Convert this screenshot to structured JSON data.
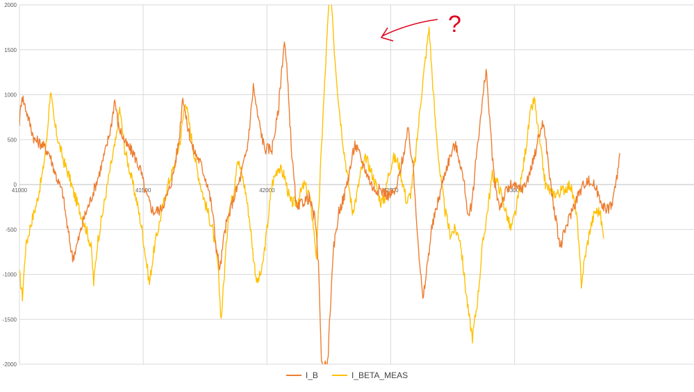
{
  "chart_data": {
    "type": "line",
    "title": "",
    "xlabel": "",
    "ylabel": "",
    "xlim": [
      41000,
      43725
    ],
    "ylim": [
      -2000,
      2000
    ],
    "x_ticks": [
      "41000",
      "41500",
      "42000",
      "42500",
      "43000"
    ],
    "y_ticks": [
      "2000",
      "1500",
      "1000",
      "500",
      "0",
      "-500",
      "-1000",
      "-1500",
      "-2000"
    ],
    "grid": true,
    "legend_position": "bottom",
    "annotation": "?",
    "series": [
      {
        "name": "I_B",
        "color": "#ED7D31",
        "points": [
          [
            41000,
            700
          ],
          [
            41010,
            1000
          ],
          [
            41030,
            800
          ],
          [
            41060,
            500
          ],
          [
            41090,
            450
          ],
          [
            41120,
            350
          ],
          [
            41150,
            80
          ],
          [
            41175,
            -100
          ],
          [
            41195,
            -500
          ],
          [
            41215,
            -820
          ],
          [
            41235,
            -650
          ],
          [
            41260,
            -380
          ],
          [
            41290,
            -150
          ],
          [
            41320,
            100
          ],
          [
            41350,
            400
          ],
          [
            41370,
            650
          ],
          [
            41385,
            950
          ],
          [
            41400,
            650
          ],
          [
            41430,
            450
          ],
          [
            41460,
            350
          ],
          [
            41490,
            150
          ],
          [
            41510,
            -100
          ],
          [
            41540,
            -300
          ],
          [
            41570,
            -280
          ],
          [
            41600,
            -100
          ],
          [
            41620,
            100
          ],
          [
            41645,
            500
          ],
          [
            41660,
            1000
          ],
          [
            41675,
            700
          ],
          [
            41700,
            400
          ],
          [
            41730,
            250
          ],
          [
            41760,
            0
          ],
          [
            41780,
            -300
          ],
          [
            41795,
            -700
          ],
          [
            41810,
            -950
          ],
          [
            41830,
            -500
          ],
          [
            41860,
            -200
          ],
          [
            41890,
            50
          ],
          [
            41920,
            400
          ],
          [
            41935,
            800
          ],
          [
            41945,
            1100
          ],
          [
            41960,
            800
          ],
          [
            41990,
            400
          ],
          [
            42020,
            400
          ],
          [
            42045,
            800
          ],
          [
            42060,
            1300
          ],
          [
            42070,
            1600
          ],
          [
            42080,
            1300
          ],
          [
            42100,
            350
          ],
          [
            42120,
            -300
          ],
          [
            42140,
            -200
          ],
          [
            42170,
            -150
          ],
          [
            42195,
            -400
          ],
          [
            42210,
            -1000
          ],
          [
            42220,
            -2000
          ],
          [
            42245,
            -2000
          ],
          [
            42255,
            -1400
          ],
          [
            42270,
            -700
          ],
          [
            42290,
            -300
          ],
          [
            42310,
            -150
          ],
          [
            42330,
            100
          ],
          [
            42355,
            450
          ],
          [
            42375,
            320
          ],
          [
            42400,
            150
          ],
          [
            42430,
            -50
          ],
          [
            42460,
            -60
          ],
          [
            42490,
            -120
          ],
          [
            42520,
            -80
          ],
          [
            42545,
            250
          ],
          [
            42570,
            600
          ],
          [
            42590,
            200
          ],
          [
            42600,
            -200
          ],
          [
            42615,
            -800
          ],
          [
            42630,
            -1300
          ],
          [
            42645,
            -950
          ],
          [
            42665,
            -500
          ],
          [
            42690,
            -200
          ],
          [
            42720,
            150
          ],
          [
            42745,
            350
          ],
          [
            42760,
            450
          ],
          [
            42780,
            250
          ],
          [
            42800,
            -50
          ],
          [
            42815,
            -400
          ],
          [
            42830,
            -150
          ],
          [
            42850,
            450
          ],
          [
            42870,
            900
          ],
          [
            42885,
            1300
          ],
          [
            42905,
            500
          ],
          [
            42920,
            0
          ],
          [
            42940,
            -250
          ],
          [
            42965,
            -80
          ],
          [
            42990,
            0
          ],
          [
            43010,
            -50
          ],
          [
            43040,
            -30
          ],
          [
            43070,
            200
          ],
          [
            43095,
            500
          ],
          [
            43115,
            700
          ],
          [
            43130,
            400
          ],
          [
            43150,
            -100
          ],
          [
            43170,
            -450
          ],
          [
            43185,
            -700
          ],
          [
            43205,
            -500
          ],
          [
            43230,
            -300
          ],
          [
            43260,
            -100
          ],
          [
            43290,
            50
          ],
          [
            43320,
            0
          ],
          [
            43345,
            -150
          ],
          [
            43370,
            -300
          ],
          [
            43395,
            -200
          ],
          [
            43415,
            100
          ],
          [
            43425,
            350
          ]
        ]
      },
      {
        "name": "I_BETA_MEAS",
        "color": "#FFC000",
        "points": [
          [
            41000,
            -1000
          ],
          [
            41012,
            -1250
          ],
          [
            41025,
            -700
          ],
          [
            41045,
            -450
          ],
          [
            41070,
            -200
          ],
          [
            41095,
            150
          ],
          [
            41110,
            500
          ],
          [
            41125,
            1050
          ],
          [
            41140,
            700
          ],
          [
            41160,
            450
          ],
          [
            41180,
            250
          ],
          [
            41200,
            100
          ],
          [
            41220,
            -100
          ],
          [
            41245,
            -300
          ],
          [
            41270,
            -500
          ],
          [
            41290,
            -700
          ],
          [
            41300,
            -1100
          ],
          [
            41315,
            -650
          ],
          [
            41340,
            -250
          ],
          [
            41365,
            150
          ],
          [
            41390,
            500
          ],
          [
            41405,
            850
          ],
          [
            41425,
            400
          ],
          [
            41450,
            100
          ],
          [
            41475,
            -200
          ],
          [
            41495,
            -500
          ],
          [
            41510,
            -800
          ],
          [
            41525,
            -1100
          ],
          [
            41545,
            -700
          ],
          [
            41575,
            -300
          ],
          [
            41600,
            0
          ],
          [
            41625,
            200
          ],
          [
            41650,
            500
          ],
          [
            41670,
            950
          ],
          [
            41690,
            600
          ],
          [
            41715,
            200
          ],
          [
            41740,
            -100
          ],
          [
            41760,
            -300
          ],
          [
            41780,
            -500
          ],
          [
            41800,
            -850
          ],
          [
            41815,
            -1500
          ],
          [
            41830,
            -900
          ],
          [
            41845,
            -300
          ],
          [
            41865,
            -100
          ],
          [
            41880,
            300
          ],
          [
            41900,
            100
          ],
          [
            41915,
            -100
          ],
          [
            41930,
            -400
          ],
          [
            41945,
            -800
          ],
          [
            41960,
            -1100
          ],
          [
            41980,
            -950
          ],
          [
            42000,
            -500
          ],
          [
            42020,
            0
          ],
          [
            42045,
            200
          ],
          [
            42070,
            100
          ],
          [
            42095,
            -200
          ],
          [
            42120,
            -200
          ],
          [
            42150,
            0
          ],
          [
            42170,
            -100
          ],
          [
            42185,
            -400
          ],
          [
            42200,
            -800
          ],
          [
            42210,
            -200
          ],
          [
            42225,
            700
          ],
          [
            42240,
            1500
          ],
          [
            42250,
            2000
          ],
          [
            42262,
            2000
          ],
          [
            42272,
            1500
          ],
          [
            42290,
            900
          ],
          [
            42310,
            400
          ],
          [
            42330,
            0
          ],
          [
            42345,
            -300
          ],
          [
            42360,
            -150
          ],
          [
            42380,
            150
          ],
          [
            42400,
            300
          ],
          [
            42420,
            150
          ],
          [
            42440,
            0
          ],
          [
            42460,
            -200
          ],
          [
            42475,
            -150
          ],
          [
            42490,
            100
          ],
          [
            42510,
            300
          ],
          [
            42530,
            250
          ],
          [
            42550,
            0
          ],
          [
            42565,
            -200
          ],
          [
            42580,
            -100
          ],
          [
            42600,
            300
          ],
          [
            42620,
            900
          ],
          [
            42640,
            1400
          ],
          [
            42655,
            1750
          ],
          [
            42665,
            1300
          ],
          [
            42680,
            700
          ],
          [
            42700,
            100
          ],
          [
            42720,
            -300
          ],
          [
            42740,
            -550
          ],
          [
            42760,
            -500
          ],
          [
            42780,
            -600
          ],
          [
            42800,
            -1100
          ],
          [
            42815,
            -1450
          ],
          [
            42830,
            -1700
          ],
          [
            42850,
            -1300
          ],
          [
            42870,
            -700
          ],
          [
            42890,
            -300
          ],
          [
            42910,
            100
          ],
          [
            42935,
            0
          ],
          [
            42960,
            -250
          ],
          [
            42985,
            -500
          ],
          [
            43005,
            -300
          ],
          [
            43030,
            100
          ],
          [
            43050,
            500
          ],
          [
            43065,
            800
          ],
          [
            43080,
            950
          ],
          [
            43100,
            500
          ],
          [
            43125,
            0
          ],
          [
            43150,
            -100
          ],
          [
            43175,
            -100
          ],
          [
            43200,
            -50
          ],
          [
            43225,
            0
          ],
          [
            43250,
            -300
          ],
          [
            43270,
            -1100
          ],
          [
            43285,
            -800
          ],
          [
            43305,
            -500
          ],
          [
            43325,
            -300
          ],
          [
            43345,
            -300
          ],
          [
            43360,
            -600
          ]
        ]
      }
    ]
  }
}
